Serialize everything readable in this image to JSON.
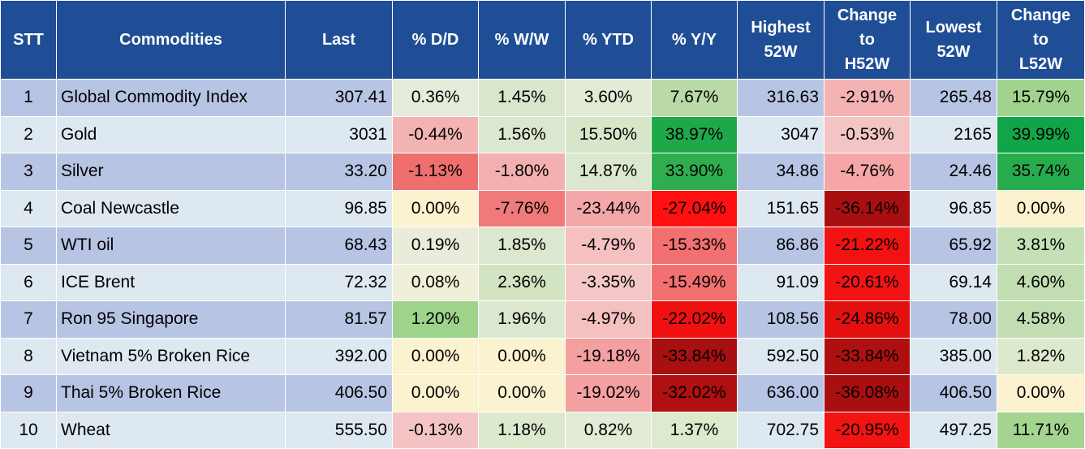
{
  "columns": [
    "STT",
    "Commodities",
    "Last",
    "% D/D",
    "% W/W",
    "% YTD",
    "% Y/Y",
    "Highest\n52W",
    "Change\nto\nH52W",
    "Lowest\n52W",
    "Change\nto\nL52W"
  ],
  "header_lines": [
    [
      "STT"
    ],
    [
      "Commodities"
    ],
    [
      "Last"
    ],
    [
      "% D/D"
    ],
    [
      "% W/W"
    ],
    [
      "% YTD"
    ],
    [
      "% Y/Y"
    ],
    [
      "Highest",
      "52W"
    ],
    [
      "Change",
      "to",
      "H52W"
    ],
    [
      "Lowest",
      "52W"
    ],
    [
      "Change",
      "to",
      "L52W"
    ]
  ],
  "rows": [
    {
      "cells": [
        "1",
        "Global Commodity Index",
        "307.41",
        "0.36%",
        "1.45%",
        "3.60%",
        "7.67%",
        "316.63",
        "-2.91%",
        "265.48",
        "15.79%"
      ],
      "colors": [
        "#b7c4e4",
        "#b7c4e4",
        "#b7c4e4",
        "#e6ecda",
        "#d9e6cc",
        "#e2ebd6",
        "#b9d9a6",
        "#b7c4e4",
        "#f4b2b2",
        "#b7c4e4",
        "#9fd38e"
      ]
    },
    {
      "cells": [
        "2",
        "Gold",
        "3031",
        "-0.44%",
        "1.56%",
        "15.50%",
        "38.97%",
        "3047",
        "-0.53%",
        "2165",
        "39.99%"
      ],
      "colors": [
        "#dde8f0",
        "#dde8f0",
        "#dde8f0",
        "#f4b3b3",
        "#dbe8cf",
        "#d7e6c8",
        "#1fa84a",
        "#dde8f0",
        "#f2c4c4",
        "#dde8f0",
        "#12a448"
      ]
    },
    {
      "cells": [
        "3",
        "Silver",
        "33.20",
        "-1.13%",
        "-1.80%",
        "14.87%",
        "33.90%",
        "34.86",
        "-4.76%",
        "24.46",
        "35.74%"
      ],
      "colors": [
        "#b7c4e4",
        "#b7c4e4",
        "#b7c4e4",
        "#ef6e6e",
        "#f4b0b0",
        "#dbe8cf",
        "#30ae4f",
        "#b7c4e4",
        "#f5a7a7",
        "#b7c4e4",
        "#27ac4d"
      ]
    },
    {
      "cells": [
        "4",
        "Coal Newcastle",
        "96.85",
        "0.00%",
        "-7.76%",
        "-23.44%",
        "-27.04%",
        "151.65",
        "-36.14%",
        "96.85",
        "0.00%"
      ],
      "colors": [
        "#dde8f0",
        "#dde8f0",
        "#dde8f0",
        "#fbf2cf",
        "#f07a7a",
        "#f4a7a7",
        "#ff1010",
        "#dde8f0",
        "#a90f10",
        "#dde8f0",
        "#fbf1cf"
      ]
    },
    {
      "cells": [
        "5",
        "WTI oil",
        "68.43",
        "0.19%",
        "1.85%",
        "-4.79%",
        "-15.33%",
        "86.86",
        "-21.22%",
        "65.92",
        "3.81%"
      ],
      "colors": [
        "#b7c4e4",
        "#b7c4e4",
        "#b7c4e4",
        "#e9ecd8",
        "#dbe8cf",
        "#f4c0c0",
        "#f37070",
        "#b7c4e4",
        "#f21212",
        "#b7c4e4",
        "#c5dfb6"
      ]
    },
    {
      "cells": [
        "6",
        "ICE Brent",
        "72.32",
        "0.08%",
        "2.36%",
        "-3.35%",
        "-15.49%",
        "91.09",
        "-20.61%",
        "69.14",
        "4.60%"
      ],
      "colors": [
        "#dde8f0",
        "#dde8f0",
        "#dde8f0",
        "#f0f0d8",
        "#d3e4c3",
        "#f4c6c6",
        "#f37070",
        "#dde8f0",
        "#f21414",
        "#dde8f0",
        "#c2ddb1"
      ]
    },
    {
      "cells": [
        "7",
        "Ron 95 Singapore",
        "81.57",
        "1.20%",
        "1.96%",
        "-4.97%",
        "-22.02%",
        "108.56",
        "-24.86%",
        "78.00",
        "4.58%"
      ],
      "colors": [
        "#b7c4e4",
        "#b7c4e4",
        "#b7c4e4",
        "#9ed38c",
        "#dbe8cf",
        "#f4c0c0",
        "#f11010",
        "#b7c4e4",
        "#e41010",
        "#b7c4e4",
        "#c2ddb1"
      ]
    },
    {
      "cells": [
        "8",
        "Vietnam 5% Broken Rice",
        "392.00",
        "0.00%",
        "0.00%",
        "-19.18%",
        "-33.84%",
        "592.50",
        "-33.84%",
        "385.00",
        "1.82%"
      ],
      "colors": [
        "#dde8f0",
        "#dde8f0",
        "#dde8f0",
        "#fbf2cf",
        "#fbf2cf",
        "#f4a0a0",
        "#a80f10",
        "#dde8f0",
        "#ae1010",
        "#dde8f0",
        "#dde9cd"
      ]
    },
    {
      "cells": [
        "9",
        "Thai 5% Broken Rice",
        "406.50",
        "0.00%",
        "0.00%",
        "-19.02%",
        "-32.02%",
        "636.00",
        "-36.08%",
        "406.50",
        "0.00%"
      ],
      "colors": [
        "#b7c4e4",
        "#b7c4e4",
        "#b7c4e4",
        "#fbf2cf",
        "#fbf2cf",
        "#f4a0a0",
        "#b01010",
        "#b7c4e4",
        "#a90f10",
        "#b7c4e4",
        "#fbf1cf"
      ]
    },
    {
      "cells": [
        "10",
        "Wheat",
        "555.50",
        "-0.13%",
        "1.18%",
        "0.82%",
        "1.37%",
        "702.75",
        "-20.95%",
        "497.25",
        "11.71%"
      ],
      "colors": [
        "#dde8f0",
        "#dde8f0",
        "#dde8f0",
        "#f4c4c4",
        "#dde9cf",
        "#e2ebd6",
        "#dceacd",
        "#dde8f0",
        "#f21313",
        "#dde8f0",
        "#a4d590"
      ]
    }
  ]
}
